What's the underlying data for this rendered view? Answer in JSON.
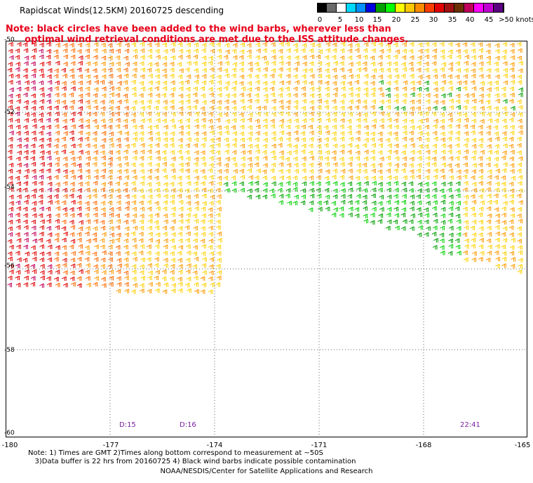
{
  "title": "Rapidscat Winds(12.5KM) 20160725 descending",
  "note": "Note: black circles have been added to the wind barbs, wherever less than\n      optimal wind retrieval conditions are met due to the ISS attitude changes.",
  "colorbar": {
    "colors": [
      "#000000",
      "#6a6a6a",
      "#ffffff",
      "#00d8ff",
      "#0090ff",
      "#0000e0",
      "#00a000",
      "#00ff00",
      "#ffff00",
      "#ffc800",
      "#ff8c00",
      "#ff3c00",
      "#e00000",
      "#a01010",
      "#6a3000",
      "#c0005a",
      "#ff00ff",
      "#c000d0",
      "#5a0080"
    ],
    "labels": [
      "0",
      "5",
      "10",
      "15",
      "20",
      "25",
      "30",
      "35",
      "40",
      "45",
      ">50 knots"
    ]
  },
  "map": {
    "lat_labels": [
      "-50",
      "-52",
      "-54",
      "-56",
      "-58",
      "-60"
    ],
    "lon_labels": [
      "-180",
      "-177",
      "-174",
      "-171",
      "-168",
      "-165"
    ]
  },
  "time_labels": [
    "D:15",
    "D:16",
    "22:41"
  ],
  "footnote": "Note: 1) Times are GMT 2)Times along bottom correspond to measurement at ~50S\n   3)Data buffer is 22 hrs from 20160725 4) Black wind barbs indicate possible contamination",
  "credit": "NOAA/NESDIS/Center for Satellite Applications and Research"
}
